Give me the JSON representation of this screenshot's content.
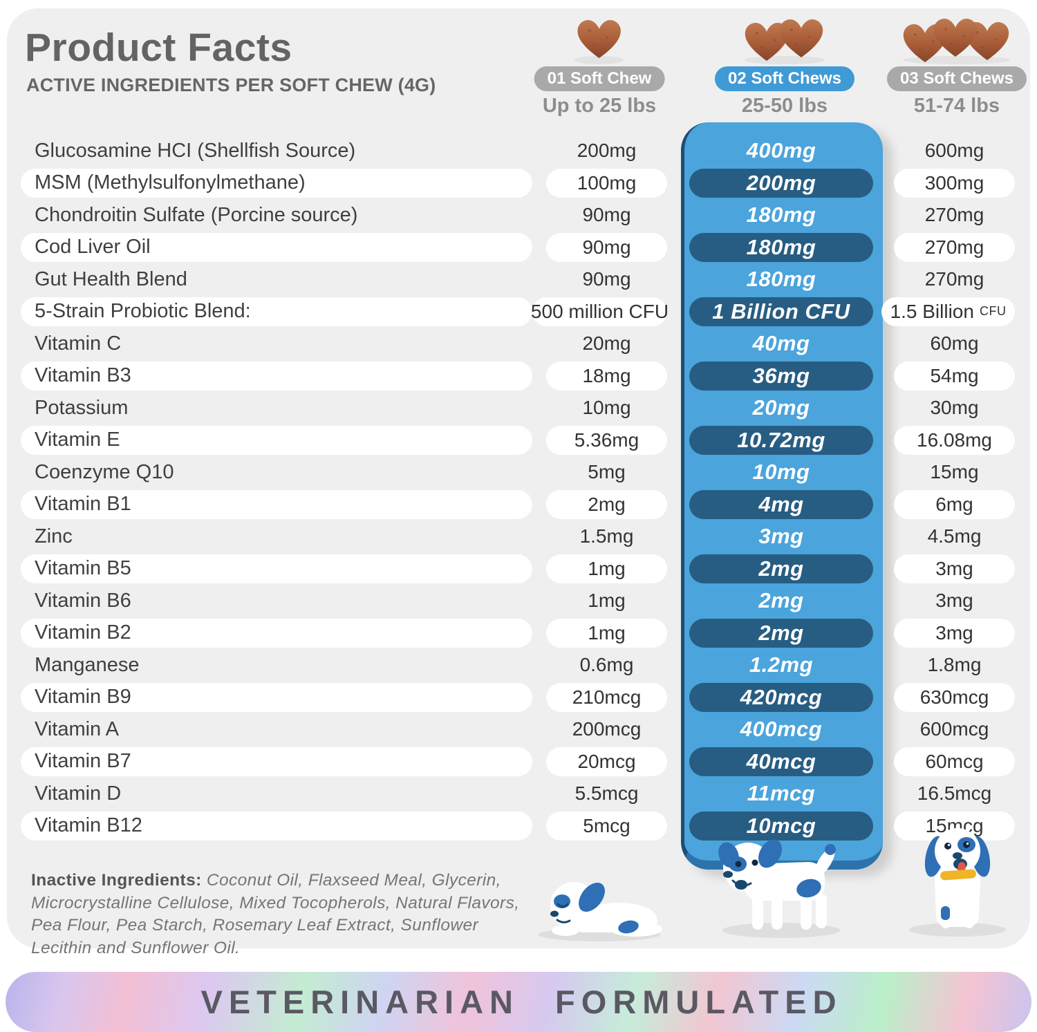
{
  "title": "Product Facts",
  "subtitle": "ACTIVE INGREDIENTS PER SOFT CHEW (4G)",
  "columns": [
    {
      "badge": "01 Soft Chew",
      "weight": "Up to 25 lbs",
      "chews": 1,
      "highlight": false
    },
    {
      "badge": "02 Soft Chews",
      "weight": "25-50 lbs",
      "chews": 2,
      "highlight": true
    },
    {
      "badge": "03 Soft Chews",
      "weight": "51-74 lbs",
      "chews": 3,
      "highlight": false
    }
  ],
  "rows": [
    {
      "name": "Glucosamine HCI (Shellfish Source)",
      "v1": "200mg",
      "v2": "400mg",
      "v3": "600mg"
    },
    {
      "name": "MSM (Methylsulfonylmethane)",
      "v1": "100mg",
      "v2": "200mg",
      "v3": "300mg"
    },
    {
      "name": "Chondroitin Sulfate (Porcine source)",
      "v1": "90mg",
      "v2": "180mg",
      "v3": "270mg"
    },
    {
      "name": "Cod Liver Oil",
      "v1": "90mg",
      "v2": "180mg",
      "v3": "270mg"
    },
    {
      "name": "Gut Health Blend",
      "v1": "90mg",
      "v2": "180mg",
      "v3": "270mg"
    },
    {
      "name": "5-Strain Probiotic Blend:",
      "v1": "500 million CFU",
      "v2": "1 Billion CFU",
      "v3": "1.5 Billion CFU"
    },
    {
      "name": "Vitamin C",
      "v1": "20mg",
      "v2": "40mg",
      "v3": "60mg"
    },
    {
      "name": "Vitamin B3",
      "v1": "18mg",
      "v2": "36mg",
      "v3": "54mg"
    },
    {
      "name": "Potassium",
      "v1": "10mg",
      "v2": "20mg",
      "v3": "30mg"
    },
    {
      "name": "Vitamin E",
      "v1": "5.36mg",
      "v2": "10.72mg",
      "v3": "16.08mg"
    },
    {
      "name": "Coenzyme Q10",
      "v1": "5mg",
      "v2": "10mg",
      "v3": "15mg"
    },
    {
      "name": "Vitamin B1",
      "v1": "2mg",
      "v2": "4mg",
      "v3": "6mg"
    },
    {
      "name": "Zinc",
      "v1": "1.5mg",
      "v2": "3mg",
      "v3": "4.5mg"
    },
    {
      "name": "Vitamin B5",
      "v1": "1mg",
      "v2": "2mg",
      "v3": "3mg"
    },
    {
      "name": "Vitamin B6",
      "v1": "1mg",
      "v2": "2mg",
      "v3": "3mg"
    },
    {
      "name": "Vitamin B2",
      "v1": "1mg",
      "v2": "2mg",
      "v3": "3mg"
    },
    {
      "name": "Manganese",
      "v1": "0.6mg",
      "v2": "1.2mg",
      "v3": "1.8mg"
    },
    {
      "name": "Vitamin B9",
      "v1": "210mcg",
      "v2": "420mcg",
      "v3": "630mcg"
    },
    {
      "name": "Vitamin A",
      "v1": "200mcg",
      "v2": "400mcg",
      "v3": "600mcg"
    },
    {
      "name": "Vitamin B7",
      "v1": "20mcg",
      "v2": "40mcg",
      "v3": "60mcg"
    },
    {
      "name": "Vitamin D",
      "v1": "5.5mcg",
      "v2": "11mcg",
      "v3": "16.5mcg"
    },
    {
      "name": "Vitamin B12",
      "v1": "5mcg",
      "v2": "10mcg",
      "v3": "15mcg"
    }
  ],
  "inactive": {
    "label": "Inactive Ingredients:",
    "text": "Coconut Oil, Flaxseed Meal, Glycerin, Microcrystalline Cellulose, Mixed Tocopherols, Natural Flavors, Pea Flour, Pea Starch, Rosemary Leaf Extract, Sunflower Lecithin and Sunflower Oil."
  },
  "banner": {
    "text": "VETERINARIAN FORMULATED"
  },
  "colors": {
    "card_bg": "#efefef",
    "row_white": "#ffffff",
    "panel_blue": "#4ba4dc",
    "panel_pill_dark": "#275d82",
    "panel_edge_dark": "#1e4d72",
    "badge_gray": "#a9a9a9",
    "badge_blue": "#3f9ad6",
    "chew_brown": "#a85c38",
    "text_dark": "#3f3f3f",
    "text_gray": "#8d8d8d",
    "banner_text": "#5a5963",
    "collar_yellow": "#f0b429",
    "tongue_red": "#e2574c",
    "dog_blue": "#2f6fb5"
  }
}
